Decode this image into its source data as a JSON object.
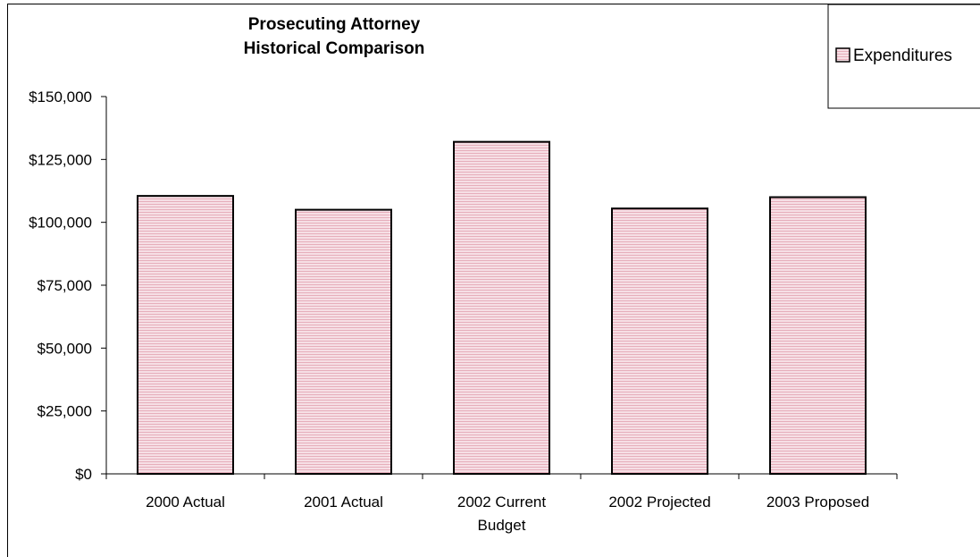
{
  "chart_data": {
    "type": "bar",
    "title_lines": [
      "Prosecuting Attorney",
      "Historical Comparison"
    ],
    "categories": [
      [
        "2000 Actual"
      ],
      [
        "2001  Actual"
      ],
      [
        "2002 Current",
        "Budget"
      ],
      [
        "2002 Projected"
      ],
      [
        "2003 Proposed"
      ]
    ],
    "series": [
      {
        "name": "Expenditures",
        "values": [
          110500,
          105000,
          132000,
          105500,
          110000
        ]
      }
    ],
    "ylim": [
      0,
      150000
    ],
    "yticks": [
      0,
      25000,
      50000,
      75000,
      100000,
      125000,
      150000
    ],
    "ytick_labels": [
      "$0",
      "$25,000",
      "$50,000",
      "$75,000",
      "$100,000",
      "$125,000",
      "$150,000"
    ],
    "legend_position": "top-right",
    "grid": false,
    "bar_fill": "#f3d6de",
    "bar_stroke": "#000000"
  }
}
